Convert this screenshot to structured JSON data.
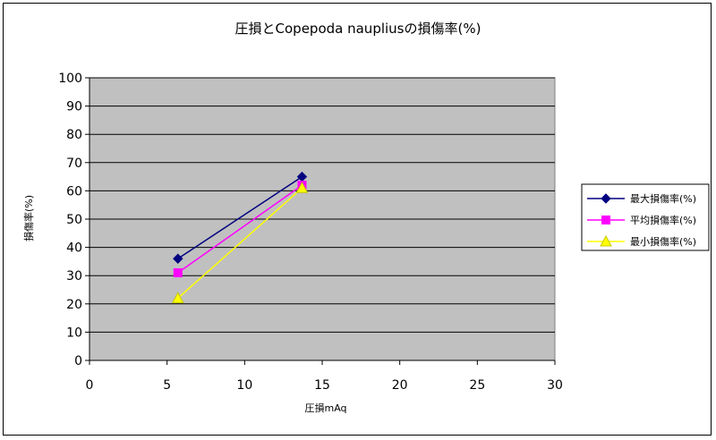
{
  "chart_data": {
    "type": "line",
    "title": "圧損とCopepoda naupliusの損傷率(%)",
    "xlabel": "圧損mAq",
    "ylabel": "損傷率(%)",
    "xlim": [
      0,
      30
    ],
    "ylim": [
      0,
      100
    ],
    "xticks": [
      0,
      5,
      10,
      15,
      20,
      25,
      30
    ],
    "yticks": [
      0,
      10,
      20,
      30,
      40,
      50,
      60,
      70,
      80,
      90,
      100
    ],
    "grid": true,
    "legend_position": "right",
    "plot_background": "#c0c0c0",
    "series": [
      {
        "name": "最大損傷率(%)",
        "color": "#000080",
        "marker": "diamond",
        "points": [
          {
            "x": 5.7,
            "y": 36
          },
          {
            "x": 13.7,
            "y": 65
          }
        ]
      },
      {
        "name": "平均損傷率(%)",
        "color": "#ff00ff",
        "marker": "square",
        "points": [
          {
            "x": 5.7,
            "y": 31
          },
          {
            "x": 13.7,
            "y": 62
          }
        ]
      },
      {
        "name": "最小損傷率(%)",
        "color": "#ffff00",
        "marker": "triangle",
        "points": [
          {
            "x": 5.7,
            "y": 22
          },
          {
            "x": 13.7,
            "y": 61
          }
        ]
      }
    ]
  }
}
